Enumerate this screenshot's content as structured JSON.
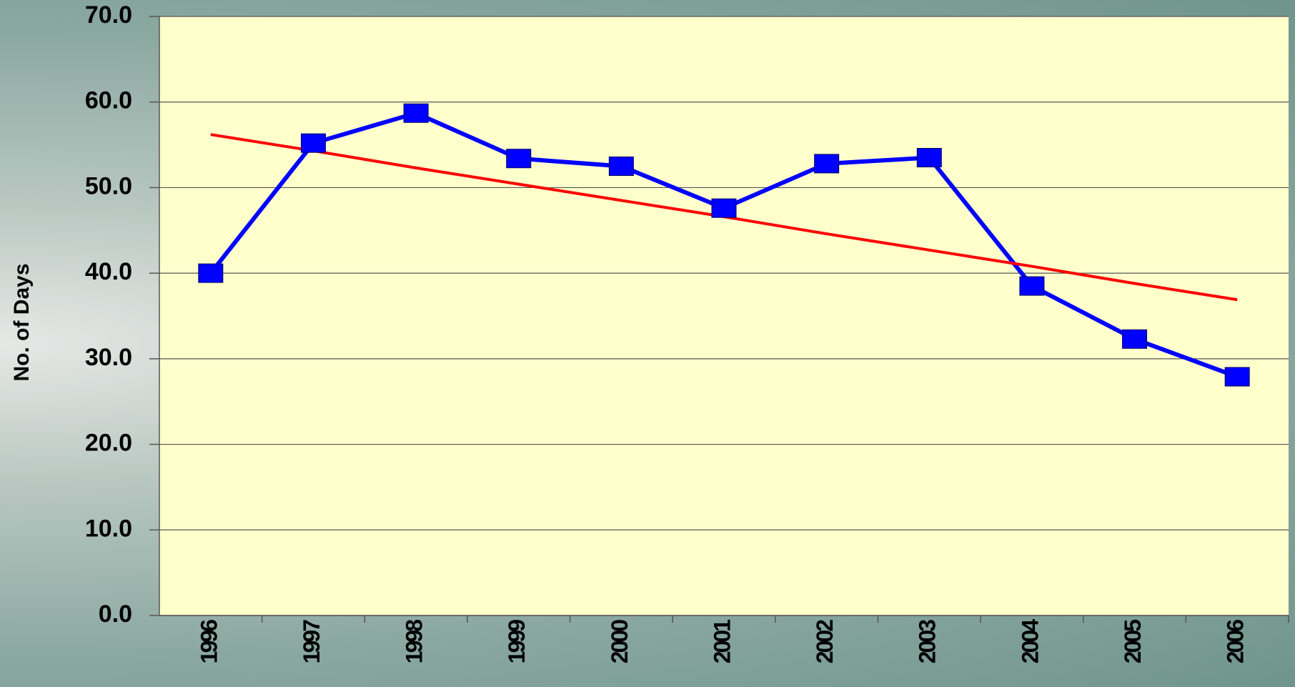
{
  "chart_data": {
    "type": "line",
    "y_label": "No. of Days",
    "categories": [
      "1996",
      "1997",
      "1998",
      "1999",
      "2000",
      "2001",
      "2002",
      "2003",
      "2004",
      "2005",
      "2006"
    ],
    "series": [
      {
        "color": "#0000ff",
        "values": [
          40.0,
          55.2,
          58.7,
          53.4,
          52.5,
          47.6,
          52.8,
          53.5,
          38.5,
          32.3,
          27.9
        ]
      },
      {
        "color": "#ff0000",
        "values": [
          56.2,
          54.3,
          52.3,
          50.4,
          48.5,
          46.6,
          44.6,
          42.7,
          40.8,
          38.8,
          36.9
        ]
      }
    ],
    "ylim": [
      0,
      70
    ],
    "yticks": [
      {
        "value": 0,
        "label": "0.0"
      },
      {
        "value": 10,
        "label": "10.0"
      },
      {
        "value": 20,
        "label": "20.0"
      },
      {
        "value": 30,
        "label": "30.0"
      },
      {
        "value": 40,
        "label": "40.0"
      },
      {
        "value": 50,
        "label": "50.0"
      },
      {
        "value": 60,
        "label": "60.0"
      },
      {
        "value": 70,
        "label": "70.0"
      }
    ],
    "grid": true
  }
}
